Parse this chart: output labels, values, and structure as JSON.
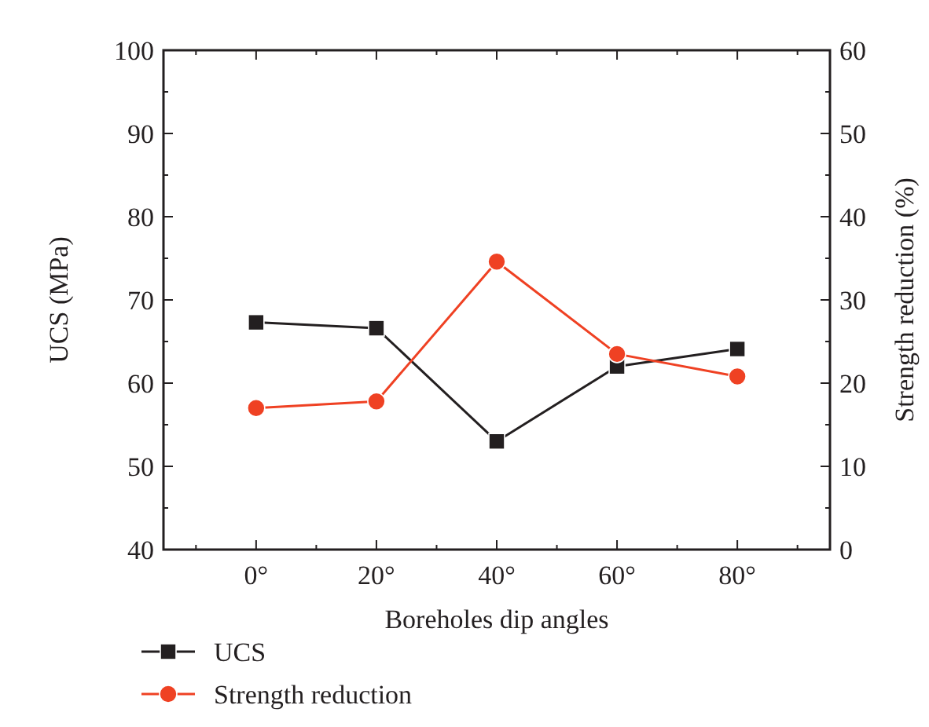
{
  "chart_data": {
    "type": "line",
    "xlabel": "Boreholes dip angles",
    "ylabel": "UCS (MPa)",
    "y2label": "Strength reduction (%)",
    "categories": [
      "0°",
      "20°",
      "40°",
      "60°",
      "80°"
    ],
    "series": [
      {
        "name": "UCS",
        "color": "#231f20",
        "marker": "square",
        "values": [
          67.3,
          66.6,
          53.0,
          62.0,
          64.1
        ]
      },
      {
        "name": "Strength reduction",
        "color": "#ef4123",
        "marker": "circle",
        "axis": "y2",
        "values": [
          17.0,
          17.8,
          34.6,
          23.5,
          20.8
        ]
      }
    ],
    "ylim": [
      40,
      100
    ],
    "yticks": [
      40,
      50,
      60,
      70,
      80,
      90,
      100
    ],
    "y2lim": [
      0,
      60
    ],
    "y2ticks": [
      0,
      10,
      20,
      30,
      40,
      50,
      60
    ],
    "legend": "bottom left",
    "grid": false,
    "line_style": "solid"
  }
}
